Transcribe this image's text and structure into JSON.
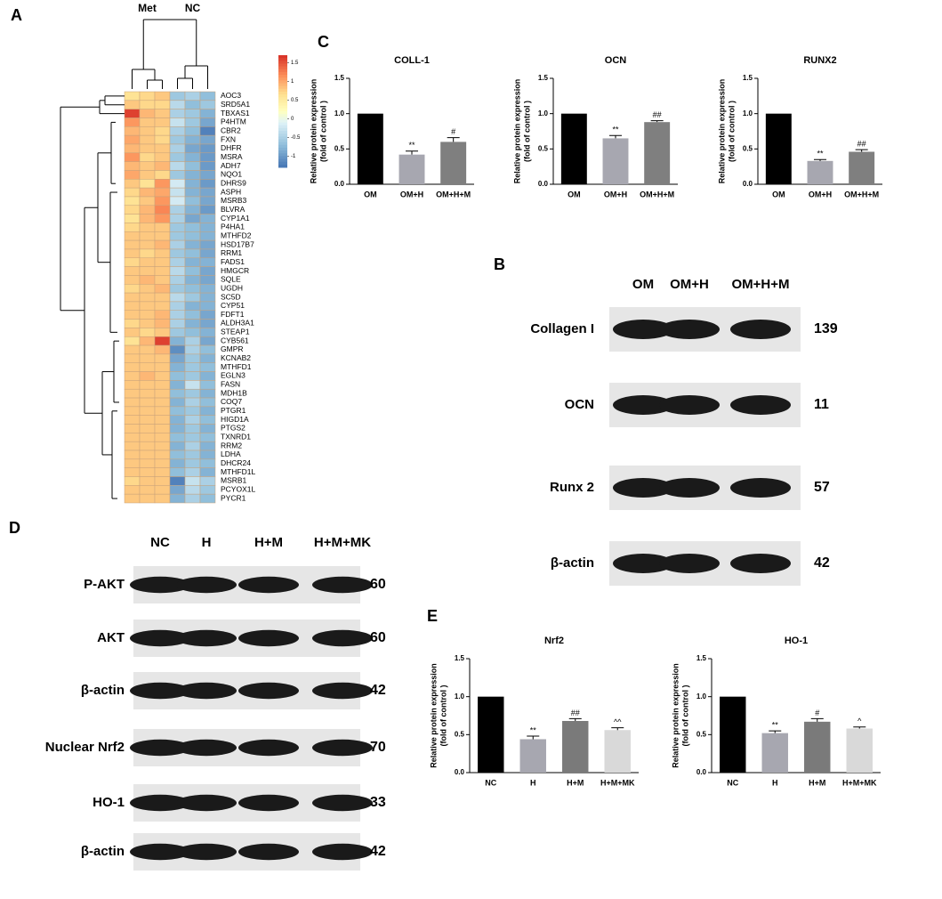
{
  "panel_labels": [
    "A",
    "B",
    "C",
    "D",
    "E"
  ],
  "chart_data": [
    {
      "type": "heatmap",
      "column_groups": [
        "Met",
        "NC"
      ],
      "rows": [
        "AOC3",
        "SRD5A1",
        "TBXAS1",
        "P4HTM",
        "CBR2",
        "FXN",
        "DHFR",
        "MSRA",
        "ADH7",
        "NQO1",
        "DHRS9",
        "ASPH",
        "MSRB3",
        "BLVRA",
        "CYP1A1",
        "P4HA1",
        "MTHFD2",
        "HSD17B7",
        "RRM1",
        "FADS1",
        "HMGCR",
        "SQLE",
        "UGDH",
        "SC5D",
        "CYP51",
        "FDFT1",
        "ALDH3A1",
        "STEAP1",
        "CYB561",
        "GMPR",
        "KCNAB2",
        "MTHFD1",
        "EGLN3",
        "FASN",
        "MDH1B",
        "COQ7",
        "PTGR1",
        "HIGD1A",
        "PTGS2",
        "TXNRD1",
        "RRM2",
        "LDHA",
        "DHCR24",
        "MTHFD1L",
        "MSRB1",
        "PCYOX1L",
        "PYCR1"
      ],
      "values": [
        [
          0.6,
          0.7,
          0.8,
          -0.6,
          -0.5,
          -0.7
        ],
        [
          0.8,
          0.7,
          0.7,
          -0.4,
          -0.7,
          -0.6
        ],
        [
          1.6,
          0.9,
          0.8,
          -0.5,
          -0.6,
          -0.8
        ],
        [
          1.1,
          0.8,
          0.8,
          -0.3,
          -0.6,
          -0.9
        ],
        [
          0.9,
          0.8,
          0.7,
          -0.5,
          -0.7,
          -1.2
        ],
        [
          1.0,
          0.8,
          0.7,
          -0.6,
          -0.8,
          -0.9
        ],
        [
          0.9,
          0.8,
          0.8,
          -0.5,
          -0.9,
          -1.0
        ],
        [
          1.1,
          0.7,
          0.8,
          -0.6,
          -0.8,
          -1.0
        ],
        [
          0.9,
          0.8,
          0.9,
          -0.4,
          -0.7,
          -1.0
        ],
        [
          1.0,
          0.8,
          0.7,
          -0.6,
          -0.8,
          -0.9
        ],
        [
          0.8,
          0.6,
          1.1,
          -0.2,
          -0.8,
          -1.0
        ],
        [
          0.7,
          0.9,
          1.0,
          -0.3,
          -0.8,
          -0.9
        ],
        [
          0.6,
          0.8,
          1.1,
          -0.2,
          -0.7,
          -0.9
        ],
        [
          0.7,
          0.9,
          1.2,
          -0.5,
          -0.8,
          -1.0
        ],
        [
          0.6,
          0.9,
          1.1,
          -0.5,
          -0.9,
          -0.8
        ],
        [
          0.7,
          0.8,
          0.8,
          -0.6,
          -0.7,
          -0.8
        ],
        [
          0.8,
          0.8,
          0.8,
          -0.6,
          -0.7,
          -0.8
        ],
        [
          0.8,
          0.8,
          0.9,
          -0.5,
          -0.8,
          -0.9
        ],
        [
          0.8,
          0.7,
          0.8,
          -0.6,
          -0.7,
          -0.9
        ],
        [
          0.7,
          0.8,
          0.8,
          -0.5,
          -0.8,
          -0.8
        ],
        [
          0.8,
          0.8,
          0.8,
          -0.4,
          -0.7,
          -0.9
        ],
        [
          0.8,
          0.9,
          0.8,
          -0.5,
          -0.8,
          -0.9
        ],
        [
          0.7,
          0.8,
          0.9,
          -0.6,
          -0.7,
          -0.8
        ],
        [
          0.8,
          0.8,
          0.8,
          -0.4,
          -0.6,
          -0.8
        ],
        [
          0.8,
          0.8,
          0.8,
          -0.5,
          -0.8,
          -0.8
        ],
        [
          0.8,
          0.8,
          0.9,
          -0.5,
          -0.7,
          -0.9
        ],
        [
          0.7,
          0.8,
          0.9,
          -0.5,
          -0.8,
          -0.9
        ],
        [
          0.8,
          0.7,
          0.8,
          -0.6,
          -0.7,
          -0.8
        ],
        [
          0.6,
          0.9,
          1.6,
          -0.8,
          -0.5,
          -0.9
        ],
        [
          0.8,
          0.8,
          0.9,
          -1.1,
          -0.5,
          -0.7
        ],
        [
          0.8,
          0.8,
          0.8,
          -0.9,
          -0.6,
          -0.8
        ],
        [
          0.8,
          0.8,
          0.8,
          -0.8,
          -0.6,
          -0.7
        ],
        [
          0.8,
          0.9,
          0.8,
          -0.7,
          -0.6,
          -0.8
        ],
        [
          0.8,
          0.8,
          0.8,
          -0.8,
          -0.3,
          -0.7
        ],
        [
          0.8,
          0.8,
          0.8,
          -0.7,
          -0.6,
          -0.8
        ],
        [
          0.8,
          0.8,
          0.8,
          -0.8,
          -0.5,
          -0.7
        ],
        [
          0.8,
          0.8,
          0.8,
          -0.7,
          -0.6,
          -0.8
        ],
        [
          0.8,
          0.8,
          0.8,
          -0.8,
          -0.5,
          -0.7
        ],
        [
          0.8,
          0.8,
          0.8,
          -0.8,
          -0.6,
          -0.8
        ],
        [
          0.8,
          0.8,
          0.8,
          -0.7,
          -0.6,
          -0.7
        ],
        [
          0.8,
          0.8,
          0.8,
          -0.8,
          -0.5,
          -0.8
        ],
        [
          0.8,
          0.8,
          0.8,
          -0.7,
          -0.6,
          -0.8
        ],
        [
          0.8,
          0.8,
          0.8,
          -0.8,
          -0.6,
          -0.7
        ],
        [
          0.8,
          0.8,
          0.8,
          -0.7,
          -0.5,
          -0.8
        ],
        [
          0.7,
          0.8,
          0.8,
          -1.2,
          -0.3,
          -0.5
        ],
        [
          0.8,
          0.8,
          0.8,
          -0.9,
          -0.4,
          -0.6
        ],
        [
          0.8,
          0.8,
          0.8,
          -0.8,
          -0.5,
          -0.7
        ]
      ],
      "zlim": [
        -1.3,
        1.7
      ],
      "colorbar_ticks": [
        1.5,
        1,
        0.5,
        0,
        -0.5,
        -1
      ]
    },
    {
      "type": "bar",
      "title": "COLL-1",
      "ylabel": [
        "Relative protein expression",
        "(fold of control )"
      ],
      "categories": [
        "OM",
        "OM+H",
        "OM+H+M"
      ],
      "values": [
        1.0,
        0.42,
        0.6
      ],
      "errors": [
        null,
        0.05,
        0.06
      ],
      "annotations": [
        null,
        "**",
        "#"
      ],
      "colors": [
        "#000000",
        "#a7a7b0",
        "#7f7f7f"
      ],
      "ylim": [
        0,
        1.5
      ],
      "yticks": [
        {
          "value": 0,
          "label": "0.0"
        },
        {
          "value": 0.5,
          "label": "0.5"
        },
        {
          "value": 1,
          "label": "1.0"
        },
        {
          "value": 1.5,
          "label": "1.5"
        }
      ]
    },
    {
      "type": "bar",
      "title": "OCN",
      "ylabel": [
        "Relative protein expression",
        "(fold of control )"
      ],
      "categories": [
        "OM",
        "OM+H",
        "OM+H+M"
      ],
      "values": [
        1.0,
        0.65,
        0.88
      ],
      "errors": [
        null,
        0.04,
        0.02
      ],
      "annotations": [
        null,
        "**",
        "##"
      ],
      "colors": [
        "#000000",
        "#a7a7b0",
        "#7f7f7f"
      ],
      "ylim": [
        0,
        1.5
      ],
      "yticks": [
        {
          "value": 0,
          "label": "0.0"
        },
        {
          "value": 0.5,
          "label": "0.5"
        },
        {
          "value": 1,
          "label": "1.0"
        },
        {
          "value": 1.5,
          "label": "1.5"
        }
      ]
    },
    {
      "type": "bar",
      "title": "RUNX2",
      "ylabel": [
        "Relative protein expression",
        "(fold of control )"
      ],
      "categories": [
        "OM",
        "OM+H",
        "OM+H+M"
      ],
      "values": [
        1.0,
        0.33,
        0.46
      ],
      "errors": [
        null,
        0.02,
        0.03
      ],
      "annotations": [
        null,
        "**",
        "##"
      ],
      "colors": [
        "#000000",
        "#a7a7b0",
        "#7f7f7f"
      ],
      "ylim": [
        0,
        1.5
      ],
      "yticks": [
        {
          "value": 0,
          "label": "0.0"
        },
        {
          "value": 0.5,
          "label": "0.5"
        },
        {
          "value": 1,
          "label": "1.0"
        },
        {
          "value": 1.5,
          "label": "1.5"
        }
      ]
    },
    {
      "type": "bar",
      "title": "Nrf2",
      "ylabel": [
        "Relative protein expression",
        "(fold of control )"
      ],
      "categories": [
        "NC",
        "H",
        "H+M",
        "H+M+MK"
      ],
      "values": [
        1.0,
        0.44,
        0.68,
        0.56
      ],
      "errors": [
        null,
        0.04,
        0.03,
        0.03
      ],
      "annotations": [
        null,
        "**",
        "##",
        "^^"
      ],
      "colors": [
        "#000000",
        "#a7a7b0",
        "#7a7a7a",
        "#d9d9d9"
      ],
      "ylim": [
        0,
        1.5
      ],
      "yticks": [
        {
          "value": 0,
          "label": "0.0"
        },
        {
          "value": 0.5,
          "label": "0.5"
        },
        {
          "value": 1,
          "label": "1.0"
        },
        {
          "value": 1.5,
          "label": "1.5"
        }
      ]
    },
    {
      "type": "bar",
      "title": "HO-1",
      "ylabel": [
        "Relative protein expression",
        "(fold of control )"
      ],
      "categories": [
        "NC",
        "H",
        "H+M",
        "H+M+MK"
      ],
      "values": [
        1.0,
        0.52,
        0.67,
        0.58
      ],
      "errors": [
        null,
        0.03,
        0.04,
        0.02
      ],
      "annotations": [
        null,
        "**",
        "#",
        "^"
      ],
      "colors": [
        "#000000",
        "#a7a7b0",
        "#7a7a7a",
        "#d9d9d9"
      ],
      "ylim": [
        0,
        1.5
      ],
      "yticks": [
        {
          "value": 0,
          "label": "0.0"
        },
        {
          "value": 0.5,
          "label": "0.5"
        },
        {
          "value": 1,
          "label": "1.0"
        },
        {
          "value": 1.5,
          "label": "1.5"
        }
      ]
    }
  ],
  "blots": [
    {
      "lanes": [
        "OM",
        "OM+H",
        "OM+H+M"
      ],
      "rows": [
        {
          "label": "Collagen I",
          "kda": 139
        },
        {
          "label": "OCN",
          "kda": 11
        },
        {
          "label": "Runx 2",
          "kda": 57
        },
        {
          "label": "β-actin",
          "kda": 42
        }
      ]
    },
    {
      "lanes": [
        "NC",
        "H",
        "H+M",
        "H+M+MK"
      ],
      "rows": [
        {
          "label": "P-AKT",
          "kda": 60
        },
        {
          "label": "AKT",
          "kda": 60
        },
        {
          "label": "β-actin",
          "kda": 42
        },
        {
          "label": "Nuclear Nrf2",
          "kda": 70
        },
        {
          "label": "HO-1",
          "kda": 33
        },
        {
          "label": "β-actin",
          "kda": 42
        }
      ]
    }
  ]
}
